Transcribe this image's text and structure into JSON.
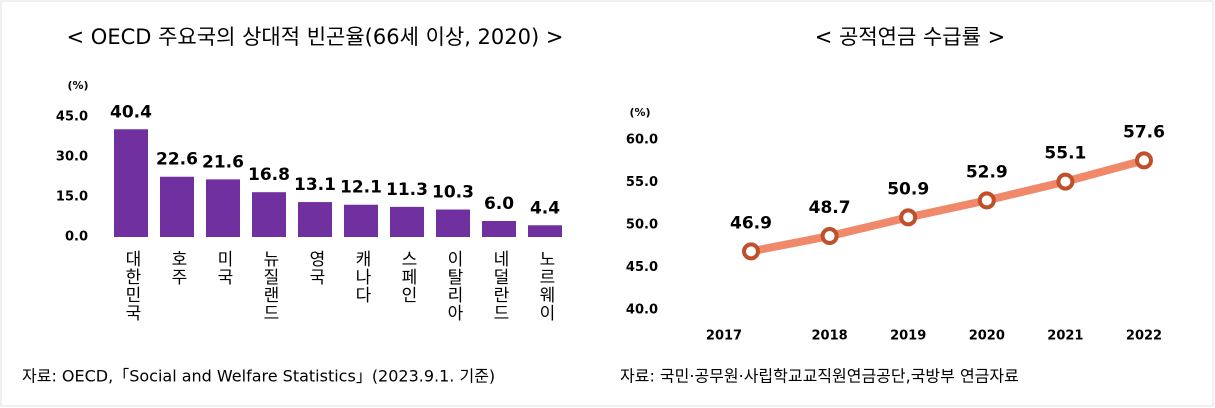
{
  "chart_data": [
    {
      "type": "bar",
      "title": "< OECD 주요국의 상대적 빈곤율(66세 이상, 2020) >",
      "unit": "(%)",
      "categories": [
        "대한민국",
        "호주",
        "미국",
        "뉴질랜드",
        "영국",
        "캐나다",
        "스페인",
        "이탈리아",
        "네덜란드",
        "노르웨이"
      ],
      "values": [
        40.4,
        22.6,
        21.6,
        16.8,
        13.1,
        12.1,
        11.3,
        10.3,
        6.0,
        4.4
      ],
      "value_labels": [
        "40.4",
        "22.6",
        "21.6",
        "16.8",
        "13.1",
        "12.1",
        "11.3",
        "10.3",
        "6.0",
        "4.4"
      ],
      "color": "#70309f",
      "ylim": [
        0,
        45
      ],
      "yticks": [
        {
          "value": 0,
          "label": "0.0"
        },
        {
          "value": 15,
          "label": "15.0"
        },
        {
          "value": 30,
          "label": "30.0"
        },
        {
          "value": 45,
          "label": "45.0"
        }
      ],
      "source": "자료: OECD,「Social and Welfare Statistics」(2023.9.1. 기준)"
    },
    {
      "type": "line",
      "title": "< 공적연금 수급률 >",
      "unit": "(%)",
      "categories": [
        "2017",
        "2018",
        "2019",
        "2020",
        "2021",
        "2022"
      ],
      "values": [
        46.9,
        48.7,
        50.9,
        52.9,
        55.1,
        57.6
      ],
      "color": "#f0896a",
      "marker_color": "#c0502b",
      "ylim": [
        40,
        60
      ],
      "yticks": [
        {
          "value": 40,
          "label": "40.0"
        },
        {
          "value": 45,
          "label": "45.0"
        },
        {
          "value": 50,
          "label": "50.0"
        },
        {
          "value": 55,
          "label": "55.0"
        },
        {
          "value": 60,
          "label": "60.0"
        }
      ],
      "source": "자료: 국민·공무원·사립학교교직원연금공단,국방부 연금자료"
    }
  ]
}
